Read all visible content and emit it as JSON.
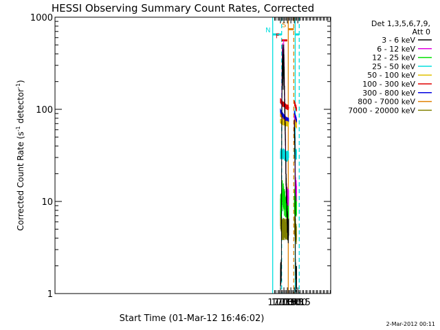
{
  "chart_data": {
    "type": "line",
    "title": "HESSI Observing Summary Count Rates, Corrected",
    "xlabel": "Start Time (01-Mar-12 16:46:02)",
    "ylabel_main": "Corrected Count Rate (s",
    "ylabel_sup1": "-1",
    "ylabel_mid": " detector",
    "ylabel_sup2": "-1",
    "ylabel_end": ")",
    "yscale": "log",
    "ylim": [
      1,
      1000
    ],
    "xlim_min": [
      46.03,
      1237
    ],
    "x_unit": "minutes after 16:00",
    "y_ticks": [
      {
        "v": 1,
        "label": "1"
      },
      {
        "v": 10,
        "label": "10"
      },
      {
        "v": 100,
        "label": "100"
      },
      {
        "v": 1000,
        "label": "1000"
      }
    ],
    "x_ticks": [
      {
        "v": 1020,
        "label": "17:00"
      },
      {
        "v": 1035,
        "label": "17:15"
      },
      {
        "v": 1050,
        "label": "17:30"
      },
      {
        "v": 1065,
        "label": "17:45"
      },
      {
        "v": 1080,
        "label": "18:00"
      },
      {
        "v": 1095,
        "label": "18:15"
      }
    ],
    "legend": {
      "header1": "Det 1,3,5,6,7,9,",
      "header2": "Att 0",
      "entries": [
        {
          "label": "3 - 6 keV",
          "color": "#000000"
        },
        {
          "label": "6 - 12 keV",
          "color": "#e000e0"
        },
        {
          "label": "12 - 25 keV",
          "color": "#00e000"
        },
        {
          "label": "25 - 50 keV",
          "color": "#00dede"
        },
        {
          "label": "50 - 100 keV",
          "color": "#e0c000"
        },
        {
          "label": "100 - 300 keV",
          "color": "#e00000"
        },
        {
          "label": "300 - 800 keV",
          "color": "#0000e0"
        },
        {
          "label": "800 - 7000 keV",
          "color": "#e08000"
        },
        {
          "label": "7000 - 20000 keV",
          "color": "#808000"
        }
      ]
    },
    "flags": [
      {
        "label": "N",
        "color": "#00dede",
        "x_start": 986.5,
        "x_end": 1025.2,
        "level": 650
      },
      {
        "label": "F",
        "color": "#e00000",
        "x_start": 1025.1,
        "x_end": 1049.5,
        "level": 560
      },
      {
        "label": "S",
        "color": "#e08000",
        "x_start": 1053.8,
        "x_end": 1077.5,
        "level": 740
      },
      {
        "label": "",
        "color": "#00dede",
        "x_start": 1083.7,
        "x_end": 1101.2,
        "level": 650
      }
    ],
    "vertical_markers": [
      {
        "x": 986.5,
        "color": "#00dede",
        "style": "solid"
      },
      {
        "x": 1025.2,
        "color": "#00dede",
        "style": "dashed"
      },
      {
        "x": 1053.8,
        "color": "#e08000",
        "style": "solid"
      },
      {
        "x": 1077.5,
        "color": "#e08000",
        "style": "dashed"
      },
      {
        "x": 1083.7,
        "color": "#00dede",
        "style": "solid"
      },
      {
        "x": 1101.2,
        "color": "#00dede",
        "style": "dashed"
      }
    ],
    "data_gaps": [
      [
        1055.5,
        1079.8
      ]
    ],
    "series": [
      {
        "name": "3 - 6 keV",
        "color": "#000000",
        "noise": 0.14,
        "x": [
          1020,
          1022,
          1024,
          1025.5,
          1027,
          1028,
          1029,
          1030,
          1031,
          1032,
          1033,
          1034,
          1035,
          1036,
          1037,
          1038,
          1040,
          1042,
          1044,
          1045,
          1046,
          1047,
          1048,
          1050,
          1052,
          1054.5,
          1079.8,
          1081,
          1082,
          1083,
          1084,
          1085,
          1086,
          1087,
          1088,
          1089,
          1090
        ],
        "y": [
          1.6,
          1.7,
          1.9,
          60,
          180,
          330,
          400,
          300,
          240,
          200,
          300,
          420,
          330,
          260,
          170,
          120,
          70,
          35,
          18,
          14,
          12,
          11,
          8,
          6,
          5,
          4.5,
          70,
          55,
          40,
          30,
          3.5,
          2,
          1.5,
          1.3,
          1.4,
          1.5,
          1.4
        ]
      },
      {
        "name": "6 - 12 keV",
        "color": "#e000e0",
        "noise": 0.1,
        "x": [
          1025.5,
          1027,
          1028,
          1029,
          1030,
          1031,
          1032,
          1033,
          1034,
          1035,
          1036,
          1037,
          1038,
          1040,
          1042,
          1044,
          1045,
          1046,
          1047,
          1050,
          1054.5,
          1079.8,
          1081,
          1082,
          1084,
          1086,
          1088,
          1090
        ],
        "y": [
          120,
          250,
          400,
          460,
          360,
          310,
          330,
          400,
          460,
          390,
          280,
          190,
          140,
          80,
          40,
          20,
          15,
          13,
          12,
          11,
          11,
          80,
          65,
          45,
          20,
          15,
          14,
          12
        ]
      },
      {
        "name": "12 - 25 keV",
        "color": "#00e000",
        "noise": 0.13,
        "x": [
          1019.5,
          1022,
          1024,
          1026,
          1027,
          1028,
          1029,
          1030,
          1031,
          1032,
          1033,
          1034,
          1035,
          1036,
          1037,
          1038,
          1040,
          1042,
          1044,
          1046,
          1048,
          1050,
          1052,
          1054.5,
          1079.8,
          1081,
          1082,
          1083,
          1084,
          1086,
          1088,
          1090
        ],
        "y": [
          9,
          9,
          9.5,
          11,
          12,
          13,
          12,
          10,
          9.5,
          11,
          12,
          11,
          10,
          9,
          10,
          11,
          9,
          8.5,
          9,
          8.5,
          9,
          8.5,
          9,
          8.5,
          9,
          9,
          12,
          10,
          9,
          10,
          9,
          9
        ]
      },
      {
        "name": "25 - 50 keV",
        "color": "#00dede",
        "noise": 0.06,
        "x": [
          1019.5,
          1022,
          1024,
          1026,
          1028,
          1030,
          1032,
          1034,
          1036,
          1038,
          1040,
          1042,
          1044,
          1046,
          1048,
          1050,
          1052,
          1054.5,
          1079.8,
          1082,
          1084,
          1086,
          1088,
          1090
        ],
        "y": [
          32,
          33,
          34,
          35,
          33,
          32,
          33,
          33,
          32,
          32,
          31,
          31,
          31,
          31,
          30,
          31,
          32,
          31,
          34,
          33,
          33,
          32,
          33,
          32
        ]
      },
      {
        "name": "50 - 100 keV",
        "color": "#e0c000",
        "noise": 0.03,
        "x": [
          1019.5,
          1024,
          1030,
          1036,
          1042,
          1048,
          1054.5,
          1079.8,
          1085,
          1090
        ],
        "y": [
          75,
          74,
          72,
          71,
          70,
          70,
          69,
          72,
          68,
          66
        ]
      },
      {
        "name": "100 - 300 keV",
        "color": "#e00000",
        "noise": 0.03,
        "x": [
          1019.5,
          1024,
          1030,
          1036,
          1042,
          1048,
          1054.5,
          1079.8,
          1085,
          1090
        ],
        "y": [
          125,
          120,
          115,
          112,
          108,
          106,
          104,
          120,
          108,
          100
        ]
      },
      {
        "name": "300 - 800 keV",
        "color": "#0000e0",
        "noise": 0.025,
        "x": [
          1019.5,
          1024,
          1030,
          1036,
          1042,
          1048,
          1054.5,
          1079.8,
          1085,
          1090
        ],
        "y": [
          98,
          92,
          87,
          83,
          80,
          78,
          77,
          92,
          82,
          76
        ]
      },
      {
        "name": "800 - 7000 keV",
        "color": "#e08000",
        "noise": 0.025,
        "x": [
          1019.5,
          1024,
          1030,
          1036,
          1042,
          1048,
          1054.5,
          1079.8,
          1085,
          1090
        ],
        "y": [
          88,
          85,
          82,
          80,
          78,
          76,
          76,
          82,
          76,
          72
        ]
      },
      {
        "name": "7000 - 20000 keV",
        "color": "#808000",
        "noise": 0.12,
        "x": [
          1019.5,
          1022,
          1024,
          1026,
          1030,
          1036,
          1042,
          1048,
          1054.5,
          1079.8,
          1082,
          1085,
          1088,
          1090
        ],
        "y": [
          6,
          6,
          5.5,
          5,
          5,
          5,
          5,
          5,
          5,
          6,
          5.5,
          5,
          4.5,
          4.5
        ]
      }
    ]
  },
  "footer_date": "2-Mar-2012 00:11"
}
